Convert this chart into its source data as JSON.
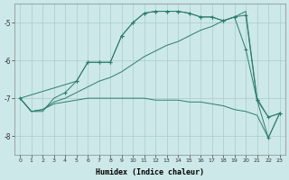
{
  "xlabel": "Humidex (Indice chaleur)",
  "bg_color": "#cce8e8",
  "grid_color": "#aacccc",
  "line_color": "#2d7d6e",
  "ylim": [
    -8.5,
    -4.5
  ],
  "xlim": [
    -0.5,
    23.5
  ],
  "yticks": [
    -8,
    -7,
    -6,
    -5
  ],
  "xticks": [
    0,
    1,
    2,
    3,
    4,
    5,
    6,
    7,
    8,
    9,
    10,
    11,
    12,
    13,
    14,
    15,
    16,
    17,
    18,
    19,
    20,
    21,
    22,
    23
  ],
  "line1_x": [
    0,
    1,
    2,
    3,
    4,
    5,
    6,
    7,
    8,
    9,
    10,
    11,
    12,
    13,
    14,
    15,
    16,
    17,
    18,
    19,
    20,
    21,
    22,
    23
  ],
  "line1_y": [
    -7.0,
    -7.35,
    -7.35,
    -7.0,
    -6.85,
    -6.55,
    -6.05,
    -6.05,
    -6.05,
    -5.35,
    -5.0,
    -4.75,
    -4.7,
    -4.7,
    -4.7,
    -4.75,
    -4.85,
    -4.85,
    -4.95,
    -4.85,
    -4.8,
    -7.05,
    -7.5,
    -7.4
  ],
  "line1_markers": [
    0,
    1,
    2,
    3,
    4,
    5,
    6,
    7,
    8,
    9,
    10,
    11,
    12,
    13,
    14,
    15,
    16,
    17,
    18,
    19,
    20,
    21,
    22,
    23
  ],
  "line2_x": [
    0,
    5,
    6,
    7,
    8,
    9,
    10,
    11,
    12,
    13,
    14,
    15,
    16,
    17,
    18,
    19,
    20,
    21,
    22,
    23
  ],
  "line2_y": [
    -7.0,
    -6.55,
    -6.05,
    -6.05,
    -6.05,
    -5.35,
    -5.0,
    -4.75,
    -4.7,
    -4.7,
    -4.7,
    -4.75,
    -4.85,
    -4.85,
    -4.95,
    -4.85,
    -5.7,
    -7.05,
    -8.05,
    -7.4
  ],
  "line2_markers": [
    5,
    6,
    7,
    8,
    9,
    10,
    11,
    12,
    13,
    14,
    15,
    16,
    17,
    18,
    19,
    20,
    21,
    22,
    23
  ],
  "line3_x": [
    0,
    1,
    2,
    3,
    4,
    5,
    6,
    7,
    8,
    9,
    10,
    11,
    12,
    13,
    14,
    15,
    16,
    17,
    18,
    19,
    20,
    21,
    22,
    23
  ],
  "line3_y": [
    -7.0,
    -7.35,
    -7.3,
    -7.1,
    -7.0,
    -6.85,
    -6.7,
    -6.55,
    -6.45,
    -6.3,
    -6.1,
    -5.9,
    -5.75,
    -5.6,
    -5.5,
    -5.35,
    -5.2,
    -5.1,
    -4.95,
    -4.85,
    -4.7,
    -7.0,
    -7.5,
    -7.4
  ],
  "line4_x": [
    0,
    1,
    2,
    3,
    4,
    5,
    6,
    7,
    8,
    9,
    10,
    11,
    12,
    13,
    14,
    15,
    16,
    17,
    18,
    19,
    20,
    21,
    22,
    23
  ],
  "line4_y": [
    -7.0,
    -7.35,
    -7.3,
    -7.15,
    -7.1,
    -7.05,
    -7.0,
    -7.0,
    -7.0,
    -7.0,
    -7.0,
    -7.0,
    -7.05,
    -7.05,
    -7.05,
    -7.1,
    -7.1,
    -7.15,
    -7.2,
    -7.3,
    -7.35,
    -7.45,
    -8.05,
    -7.4
  ]
}
